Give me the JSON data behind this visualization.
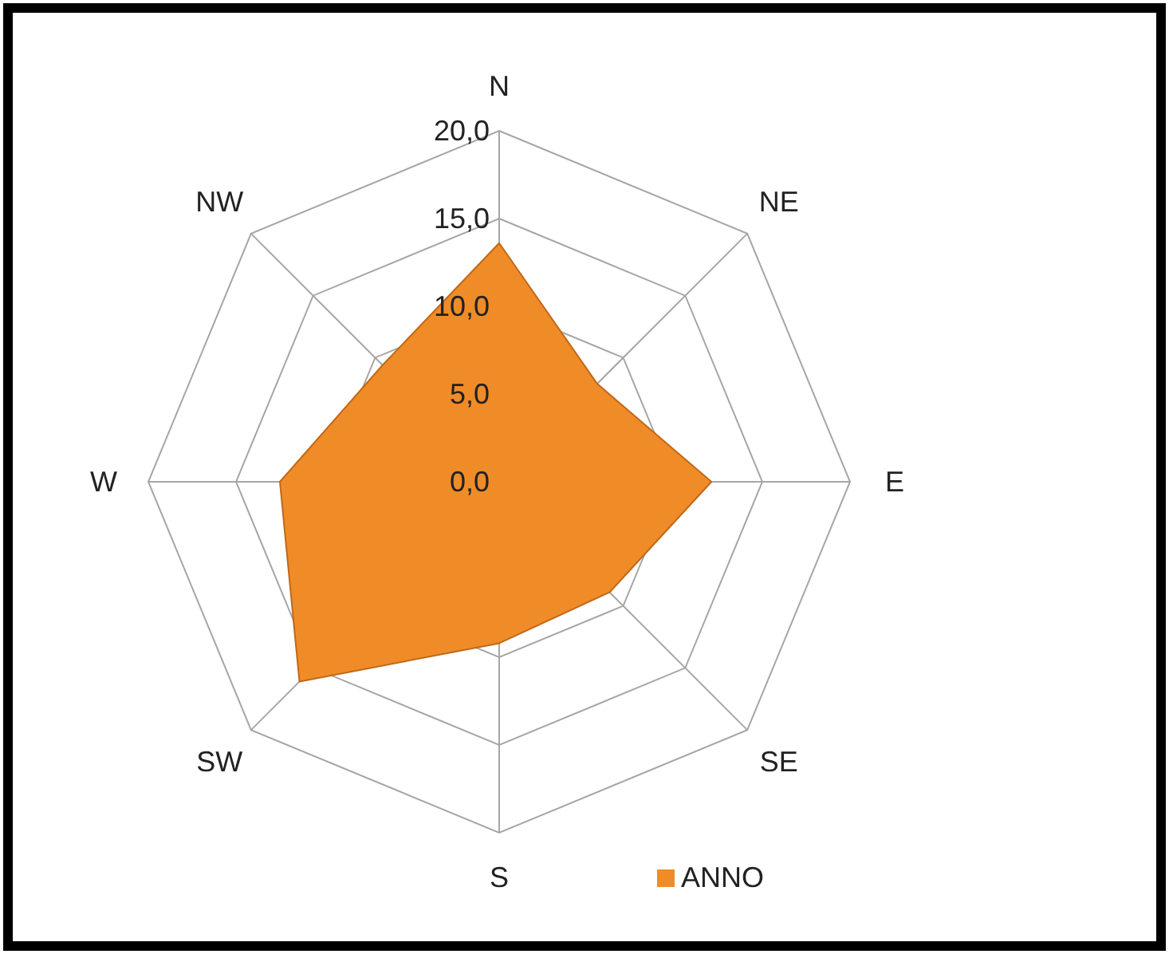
{
  "chart_data": {
    "type": "radar",
    "categories": [
      "N",
      "NE",
      "E",
      "SE",
      "S",
      "SW",
      "W",
      "NW"
    ],
    "series": [
      {
        "name": "ANNO",
        "color": "#f08c28",
        "values": [
          13.6,
          7.9,
          12.1,
          8.9,
          9.2,
          16.1,
          12.5,
          9.4
        ]
      }
    ],
    "ylim": [
      0,
      20
    ],
    "yticks": [
      {
        "value": 0,
        "label": "0,0"
      },
      {
        "value": 5,
        "label": "5,0"
      },
      {
        "value": 10,
        "label": "10,0"
      },
      {
        "value": 15,
        "label": "15,0"
      },
      {
        "value": 20,
        "label": "20,0"
      }
    ],
    "grid": true,
    "legend": "bottom right"
  }
}
